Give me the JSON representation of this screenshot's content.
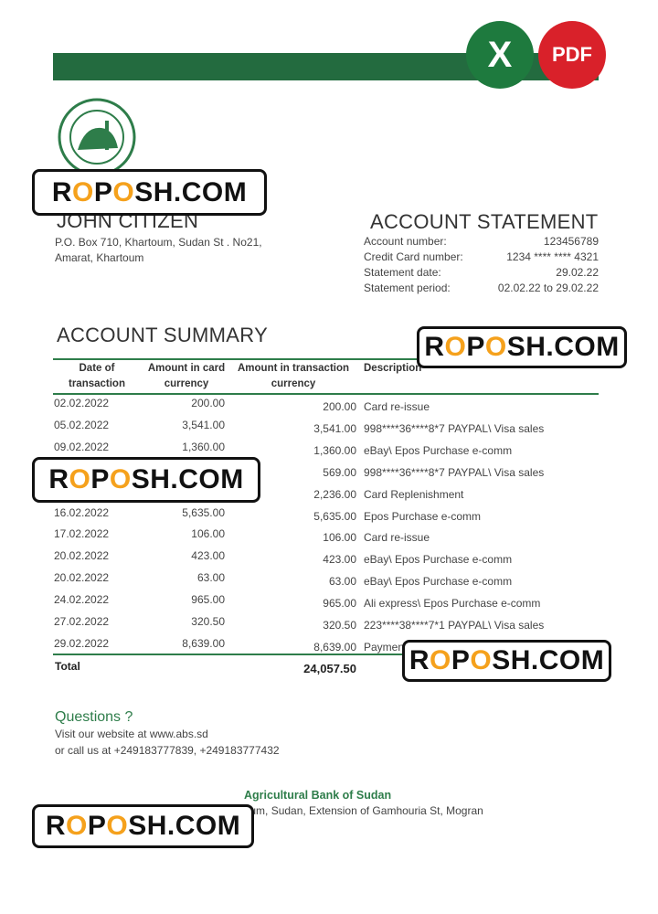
{
  "badges": [
    "X",
    "PDF"
  ],
  "watermark": [
    "R",
    "O",
    "P",
    "O",
    "SH.COM"
  ],
  "customer": {
    "name": "JOHN CITIZEN",
    "address": [
      "P.O. Box 710, Khartoum, Sudan St . No21,",
      "Amarat, Khartoum"
    ]
  },
  "statement": {
    "title": "ACCOUNT STATEMENT",
    "fields": [
      [
        "Account number:",
        "123456789"
      ],
      [
        "Credit Card number:",
        "1234 **** **** 4321"
      ],
      [
        "Statement date:",
        "29.02.22"
      ],
      [
        "Statement period:",
        "02.02.22 to 29.02.22"
      ]
    ]
  },
  "summary": {
    "title": "ACCOUNT SUMMARY",
    "headers": [
      "Date of transaction",
      "Amount in card currency",
      "Amount in transaction currency",
      "Description"
    ],
    "rows": [
      [
        "02.02.2022",
        "200.00",
        "200.00",
        "Card re-issue"
      ],
      [
        "05.02.2022",
        "3,541.00",
        "3,541.00",
        "998****36****8*7 PAYPAL\\ Visa sales"
      ],
      [
        "09.02.2022",
        "1,360.00",
        "1,360.00",
        "eBay\\ Epos Purchase e-comm"
      ],
      [
        null,
        null,
        "569.00",
        "998****36****8*7 PAYPAL\\ Visa sales"
      ],
      [
        null,
        null,
        "2,236.00",
        "Card Replenishment"
      ],
      [
        "16.02.2022",
        "5,635.00",
        "5,635.00",
        "Epos Purchase e-comm"
      ],
      [
        "17.02.2022",
        "106.00",
        "106.00",
        "Card re-issue"
      ],
      [
        "20.02.2022",
        "423.00",
        "423.00",
        "eBay\\ Epos Purchase e-comm"
      ],
      [
        "20.02.2022",
        "63.00",
        "63.00",
        "eBay\\ Epos Purchase e-comm"
      ],
      [
        "24.02.2022",
        "965.00",
        "965.00",
        "Ali express\\ Epos Purchase e-comm"
      ],
      [
        "27.02.2022",
        "320.50",
        "320.50",
        "223****38****7*1 PAYPAL\\ Visa sales"
      ],
      [
        "29.02.2022",
        "8,639.00",
        "8,639.00",
        "Payment"
      ]
    ],
    "total": [
      "Total",
      "24,057.50"
    ]
  },
  "contact": {
    "title": "Questions ?",
    "lines": [
      "Visit our website at www.abs.sd",
      "or call us at +249183777839, +249183777432"
    ]
  },
  "footer": {
    "bank": "Agricultural Bank of Sudan",
    "address": "Khartoum, Sudan, Extension of Gamhouria St, Mogran"
  }
}
